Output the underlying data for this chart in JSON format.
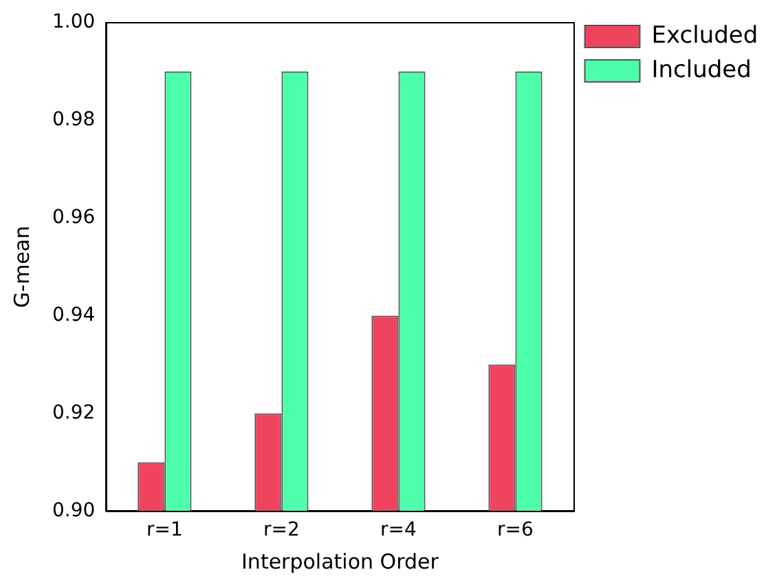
{
  "chart_data": {
    "type": "bar",
    "xlabel": "Interpolation Order",
    "ylabel": "G-mean",
    "categories": [
      "r=1",
      "r=2",
      "r=4",
      "r=6"
    ],
    "series": [
      {
        "name": "Excluded",
        "color": "#f0445e",
        "values": [
          0.91,
          0.92,
          0.94,
          0.93
        ]
      },
      {
        "name": "Included",
        "color": "#4dffaa",
        "values": [
          0.99,
          0.99,
          0.99,
          0.99
        ]
      }
    ],
    "ylim": [
      0.9,
      1.0
    ],
    "yticks": [
      {
        "value": 0.9,
        "label": "0.90"
      },
      {
        "value": 0.92,
        "label": "0.92"
      },
      {
        "value": 0.94,
        "label": "0.94"
      },
      {
        "value": 0.96,
        "label": "0.96"
      },
      {
        "value": 0.98,
        "label": "0.98"
      },
      {
        "value": 1.0,
        "label": "1.00"
      }
    ],
    "grid": false,
    "legend": "top right"
  }
}
